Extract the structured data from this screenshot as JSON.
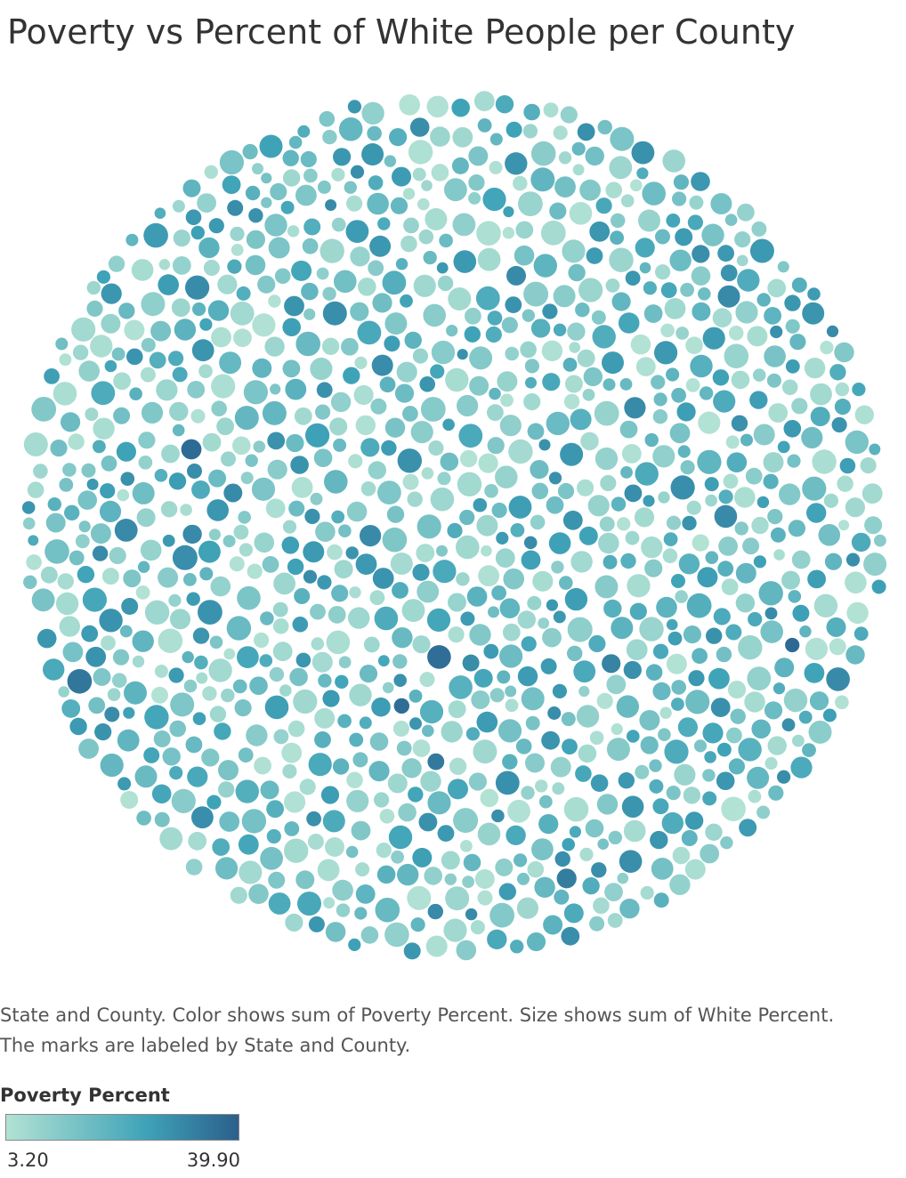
{
  "title": "Poverty vs Percent of White People per County",
  "caption": {
    "line1": "State and County.  Color shows sum of Poverty Percent.  Size shows sum of White Percent.",
    "line2": "The marks are labeled by State and County."
  },
  "legend": {
    "title": "Poverty Percent",
    "min_label": "3.20",
    "max_label": "39.90",
    "color_low": "#b2e2d4",
    "color_mid": "#3fa3b8",
    "color_high": "#2b5f8c"
  },
  "chart_data": {
    "type": "packed-bubble",
    "title": "Poverty vs Percent of White People per County",
    "mark_label_field": "State and County",
    "color_field": "Poverty Percent",
    "size_field": "White Percent",
    "color_range": [
      3.2,
      39.9
    ],
    "approx_mark_count": 1300
  }
}
